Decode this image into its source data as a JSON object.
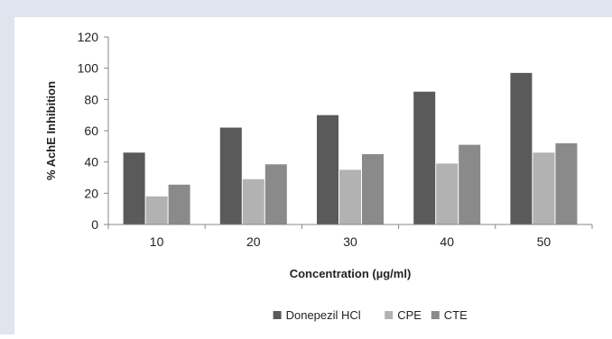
{
  "chart_data": {
    "type": "bar",
    "categories": [
      "10",
      "20",
      "30",
      "40",
      "50"
    ],
    "series": [
      {
        "name": "Donepezil HCl",
        "color": "#5a5a5a",
        "values": [
          46,
          62,
          70,
          85,
          97
        ]
      },
      {
        "name": "CPE",
        "color": "#b2b2b2",
        "values": [
          18,
          29,
          35,
          39,
          46
        ]
      },
      {
        "name": "CTE",
        "color": "#8a8a8a",
        "values": [
          25.5,
          38.5,
          45,
          51,
          52
        ]
      }
    ],
    "ylabel": "% AchE Inhibition",
    "xlabel": "Concentration (µg/ml)",
    "ylim": [
      0,
      120
    ],
    "yticks": [
      "0",
      "20",
      "40",
      "60",
      "80",
      "100",
      "120"
    ],
    "legend_position": "bottom",
    "grid": false
  }
}
